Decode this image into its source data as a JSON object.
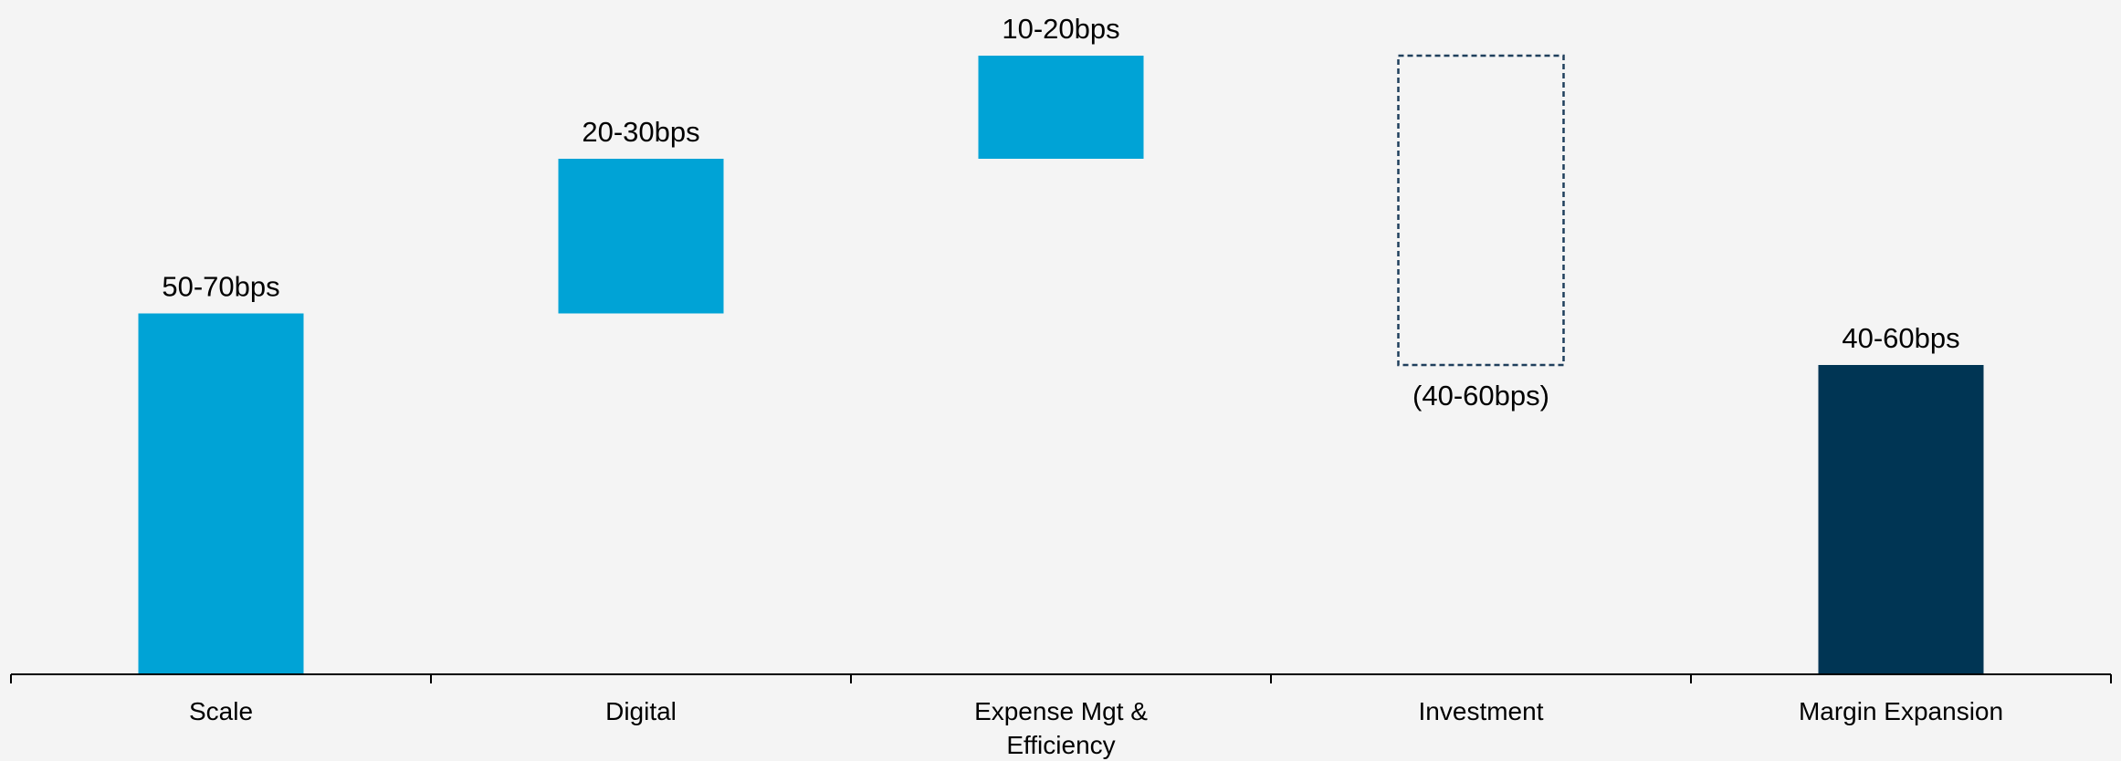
{
  "chart_data": {
    "type": "bar",
    "subtype": "waterfall",
    "title": "",
    "xlabel": "",
    "ylabel": "",
    "ylim": [
      0,
      120
    ],
    "grid": false,
    "legend": "none",
    "categories": [
      [
        "Scale"
      ],
      [
        "Digital"
      ],
      [
        "Expense Mgt &",
        "Efficiency"
      ],
      [
        "Investment"
      ],
      [
        "Margin Expansion"
      ]
    ],
    "bars": [
      {
        "kind": "increase",
        "start": 0,
        "end": 70,
        "label": "50-70bps",
        "color": "#00a3d6",
        "label_position": "above"
      },
      {
        "kind": "increase",
        "start": 70,
        "end": 100,
        "label": "20-30bps",
        "color": "#00a3d6",
        "label_position": "above"
      },
      {
        "kind": "increase",
        "start": 100,
        "end": 120,
        "label": "10-20bps",
        "color": "#00a3d6",
        "label_position": "above"
      },
      {
        "kind": "decrease",
        "start": 120,
        "end": 60,
        "label": "(40-60bps)",
        "color": "#1f3f5c",
        "style": "dashed-outline",
        "label_position": "below"
      },
      {
        "kind": "total",
        "start": 0,
        "end": 60,
        "label": "40-60bps",
        "color": "#003554",
        "label_position": "above"
      }
    ]
  }
}
